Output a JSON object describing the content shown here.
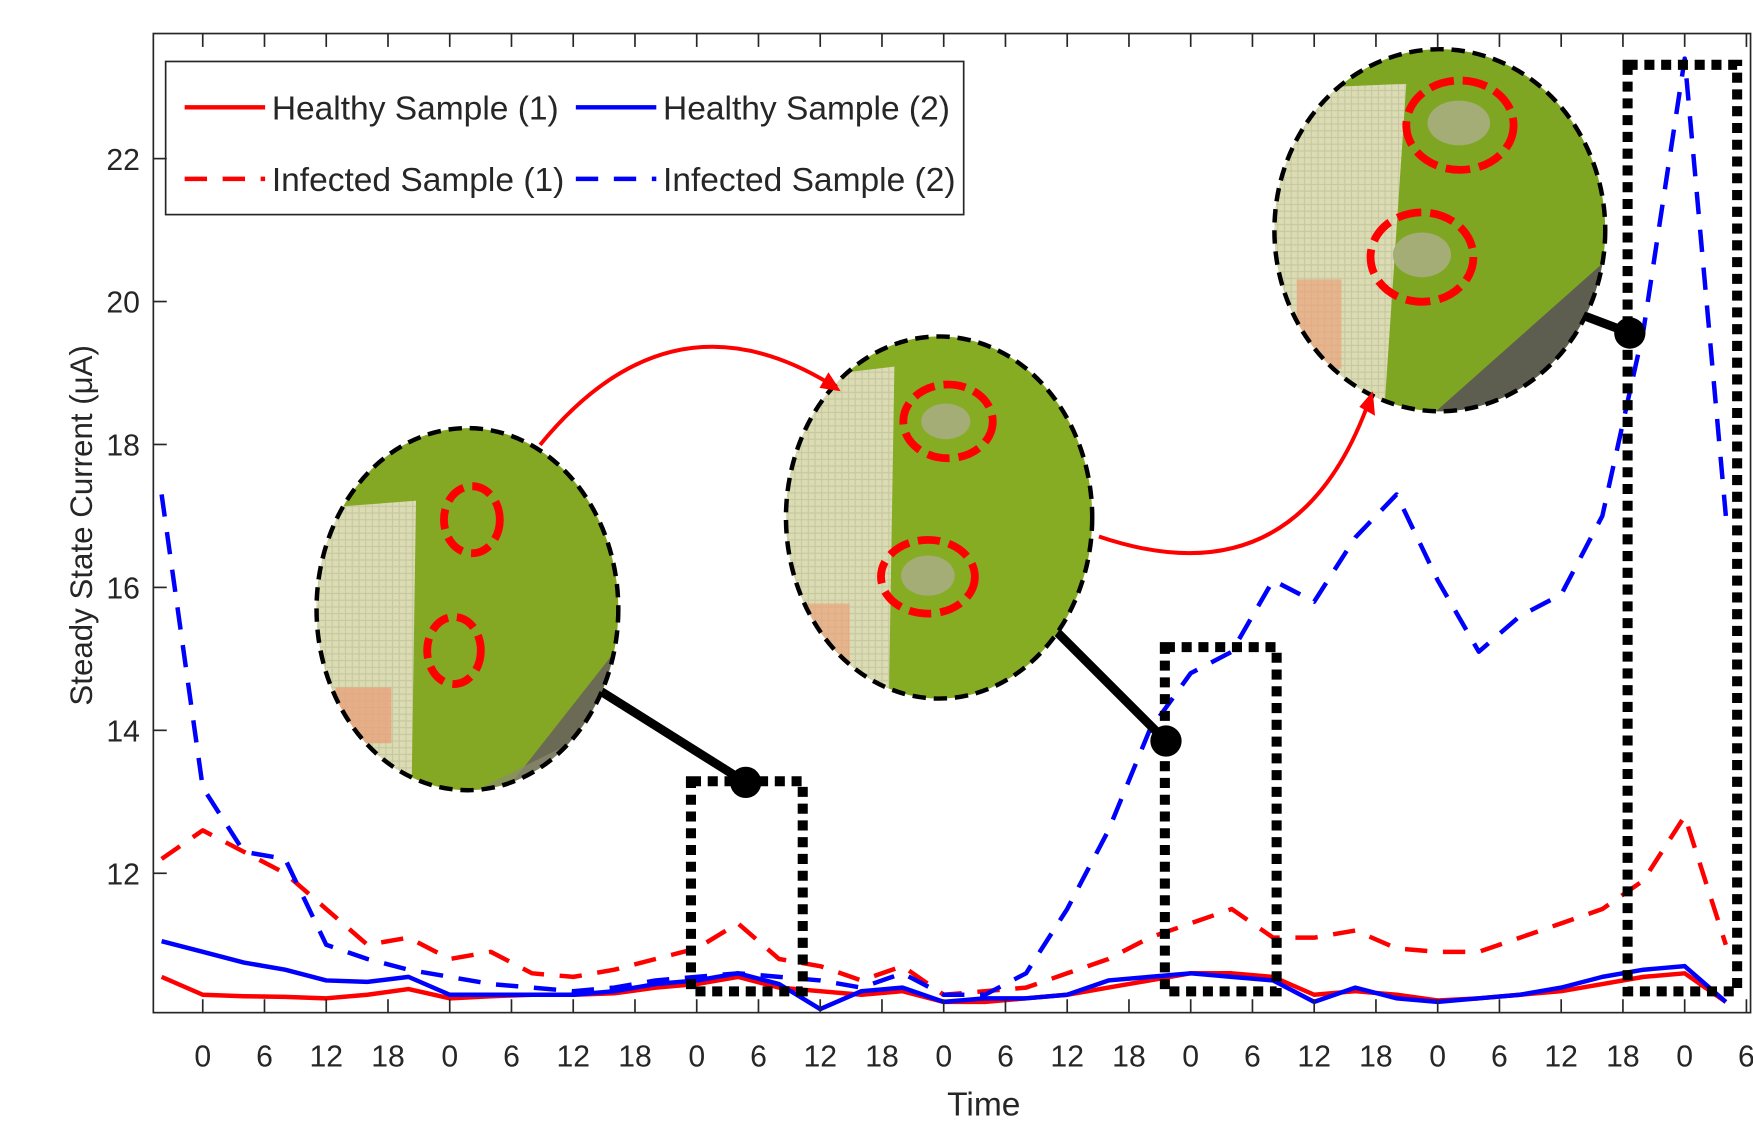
{
  "chart_data": {
    "type": "line",
    "xlabel": "Time",
    "ylabel": "Steady State Current (μA)",
    "x": [
      -4,
      0,
      4,
      8,
      12,
      16,
      20,
      24,
      28,
      32,
      36,
      40,
      44,
      48,
      52,
      56,
      60,
      64,
      68,
      72,
      76,
      80,
      84,
      88,
      92,
      96,
      100,
      104,
      108,
      112,
      116,
      120,
      124,
      128,
      132,
      136,
      140,
      144,
      148
    ],
    "series": [
      {
        "name": "Healthy Sample (1)",
        "color": "#ff0000",
        "dashed": false,
        "values": [
          10.55,
          10.3,
          10.28,
          10.27,
          10.25,
          10.3,
          10.38,
          10.25,
          10.28,
          10.3,
          10.3,
          10.32,
          10.4,
          10.45,
          10.55,
          10.4,
          10.35,
          10.3,
          10.35,
          10.2,
          10.2,
          10.25,
          10.3,
          10.4,
          10.5,
          10.6,
          10.6,
          10.55,
          10.3,
          10.35,
          10.3,
          10.22,
          10.25,
          10.3,
          10.35,
          10.45,
          10.55,
          10.6,
          10.2
        ]
      },
      {
        "name": "Healthy Sample (2)",
        "color": "#0000ff",
        "dashed": false,
        "values": [
          11.05,
          10.9,
          10.75,
          10.65,
          10.5,
          10.48,
          10.55,
          10.3,
          10.3,
          10.3,
          10.3,
          10.35,
          10.45,
          10.5,
          10.6,
          10.45,
          10.1,
          10.35,
          10.4,
          10.2,
          10.25,
          10.25,
          10.3,
          10.5,
          10.55,
          10.6,
          10.55,
          10.5,
          10.2,
          10.4,
          10.25,
          10.2,
          10.25,
          10.3,
          10.4,
          10.55,
          10.65,
          10.7,
          10.2
        ]
      },
      {
        "name": "Infected Sample (1)",
        "color": "#ff0000",
        "dashed": true,
        "values": [
          12.2,
          12.6,
          12.3,
          12.0,
          11.5,
          11.0,
          11.1,
          10.8,
          10.9,
          10.6,
          10.55,
          10.65,
          10.8,
          10.95,
          11.3,
          10.8,
          10.7,
          10.5,
          10.7,
          10.3,
          10.35,
          10.4,
          10.6,
          10.8,
          11.1,
          11.3,
          11.5,
          11.1,
          11.1,
          11.2,
          10.95,
          10.9,
          10.9,
          11.1,
          11.3,
          11.5,
          11.9,
          12.8,
          11.0
        ]
      },
      {
        "name": "Infected Sample (2)",
        "color": "#0000ff",
        "dashed": true,
        "values": [
          17.3,
          13.2,
          12.3,
          12.2,
          11.0,
          10.8,
          10.65,
          10.55,
          10.45,
          10.4,
          10.35,
          10.4,
          10.5,
          10.55,
          10.6,
          10.55,
          10.5,
          10.4,
          10.6,
          10.3,
          10.3,
          10.6,
          11.5,
          12.6,
          14.0,
          14.8,
          15.1,
          16.1,
          15.8,
          16.7,
          17.3,
          16.1,
          15.1,
          15.6,
          15.9,
          17.0,
          19.6,
          23.4,
          17.0
        ]
      }
    ],
    "xlim": [
      -4.8,
      150.4
    ],
    "xticks": [
      0,
      6,
      12,
      18,
      {
        "value": 24,
        "label": "0"
      },
      {
        "value": 30,
        "label": "6"
      },
      {
        "value": 36,
        "label": "12"
      },
      {
        "value": 42,
        "label": "18"
      },
      {
        "value": 48,
        "label": "0"
      },
      {
        "value": 54,
        "label": "6"
      },
      {
        "value": 60,
        "label": "12"
      },
      {
        "value": 66,
        "label": "18"
      },
      {
        "value": 72,
        "label": "0"
      },
      {
        "value": 78,
        "label": "6"
      },
      {
        "value": 84,
        "label": "12"
      },
      {
        "value": 90,
        "label": "18"
      },
      {
        "value": 96,
        "label": "0"
      },
      {
        "value": 102,
        "label": "6"
      },
      {
        "value": 108,
        "label": "12"
      },
      {
        "value": 114,
        "label": "18"
      },
      {
        "value": 120,
        "label": "0"
      },
      {
        "value": 126,
        "label": "6"
      },
      {
        "value": 132,
        "label": "12"
      },
      {
        "value": 138,
        "label": "18"
      },
      {
        "value": 144,
        "label": "0"
      },
      {
        "value": 150,
        "label": "6"
      }
    ],
    "ylim": [
      10.05,
      23.75
    ],
    "yticks": [
      12,
      14,
      16,
      18,
      20,
      22
    ],
    "grid": false,
    "legend": "upper left"
  }
}
